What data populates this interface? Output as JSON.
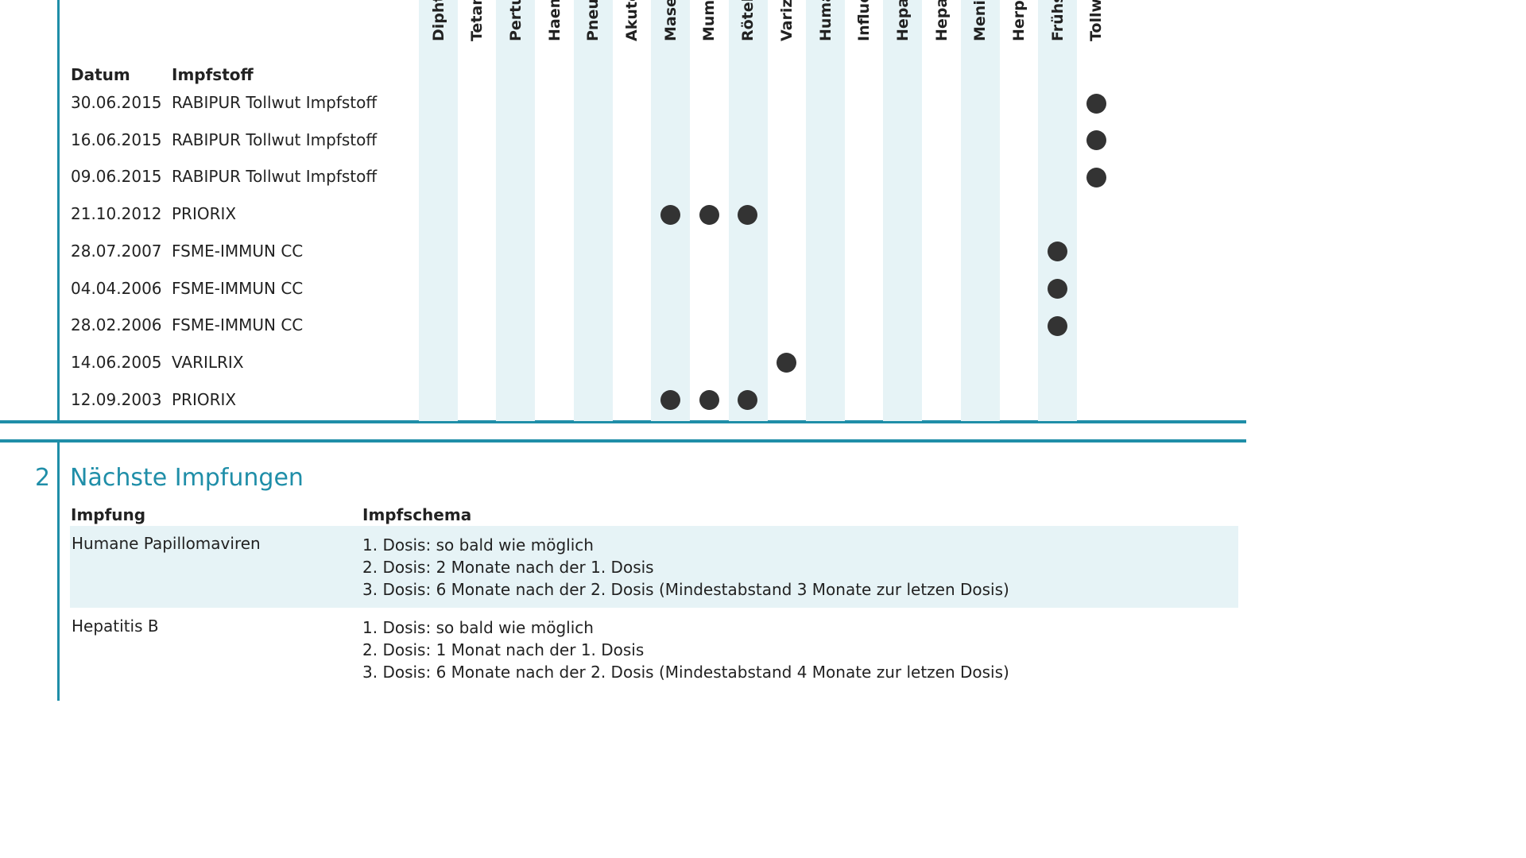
{
  "columns": [
    {
      "label": "Diphtherie",
      "shaded": true
    },
    {
      "label": "Tetanus",
      "shaded": false
    },
    {
      "label": "Pertussis",
      "shaded": true
    },
    {
      "label": "Haemophilus",
      "shaded": false
    },
    {
      "label": "Pneumokokken",
      "shaded": true
    },
    {
      "label": "Akute Poliomyelitis",
      "shaded": false
    },
    {
      "label": "Masern",
      "shaded": true
    },
    {
      "label": "Mumps",
      "shaded": false
    },
    {
      "label": "Röteln",
      "shaded": true
    },
    {
      "label": "Varizellen",
      "shaded": false
    },
    {
      "label": "Humane Papillomaviren",
      "shaded": true
    },
    {
      "label": "Influenza",
      "shaded": false
    },
    {
      "label": "Hepatitis A",
      "shaded": true
    },
    {
      "label": "Hepatitis B",
      "shaded": false
    },
    {
      "label": "Meningokokken",
      "shaded": true
    },
    {
      "label": "Herpes Zoster",
      "shaded": false
    },
    {
      "label": "Frühsommer-Meningoenzephalitis",
      "shaded": true
    },
    {
      "label": "Tollwut",
      "shaded": false
    }
  ],
  "history": {
    "date_header": "Datum",
    "vaccine_header": "Impfstoff",
    "rows": [
      {
        "date": "30.06.2015",
        "vaccine": "RABIPUR Tollwut Impfstoff",
        "marks": [
          17
        ]
      },
      {
        "date": "16.06.2015",
        "vaccine": "RABIPUR Tollwut Impfstoff",
        "marks": [
          17
        ]
      },
      {
        "date": "09.06.2015",
        "vaccine": "RABIPUR Tollwut Impfstoff",
        "marks": [
          17
        ]
      },
      {
        "date": "21.10.2012",
        "vaccine": "PRIORIX",
        "marks": [
          6,
          7,
          8
        ]
      },
      {
        "date": "28.07.2007",
        "vaccine": "FSME-IMMUN CC",
        "marks": [
          16
        ]
      },
      {
        "date": "04.04.2006",
        "vaccine": "FSME-IMMUN CC",
        "marks": [
          16
        ]
      },
      {
        "date": "28.02.2006",
        "vaccine": "FSME-IMMUN CC",
        "marks": [
          16
        ]
      },
      {
        "date": "14.06.2005",
        "vaccine": "VARILRIX",
        "marks": [
          9
        ]
      },
      {
        "date": "12.09.2003",
        "vaccine": "PRIORIX",
        "marks": [
          6,
          7,
          8
        ]
      }
    ]
  },
  "next": {
    "number": "2",
    "title": "Nächste Impfungen",
    "vaccination_header": "Impfung",
    "schema_header": "Impfschema",
    "rows": [
      {
        "name": "Humane Papillomaviren",
        "lines": [
          "1. Dosis: so bald wie möglich",
          "2. Dosis: 2 Monate nach der 1. Dosis",
          "3. Dosis: 6 Monate nach der 2. Dosis (Mindestabstand 3 Monate zur letzen Dosis)"
        ]
      },
      {
        "name": "Hepatitis B",
        "lines": [
          "1. Dosis: so bald wie möglich",
          "2. Dosis: 1 Monat nach der 1. Dosis",
          "3. Dosis: 6 Monate nach der 2. Dosis (Mindestabstand 4 Monate zur letzen Dosis)"
        ]
      }
    ]
  },
  "colors": {
    "accent": "#1f8ea8",
    "stripe": "#e6f3f6",
    "dot": "#333333"
  }
}
